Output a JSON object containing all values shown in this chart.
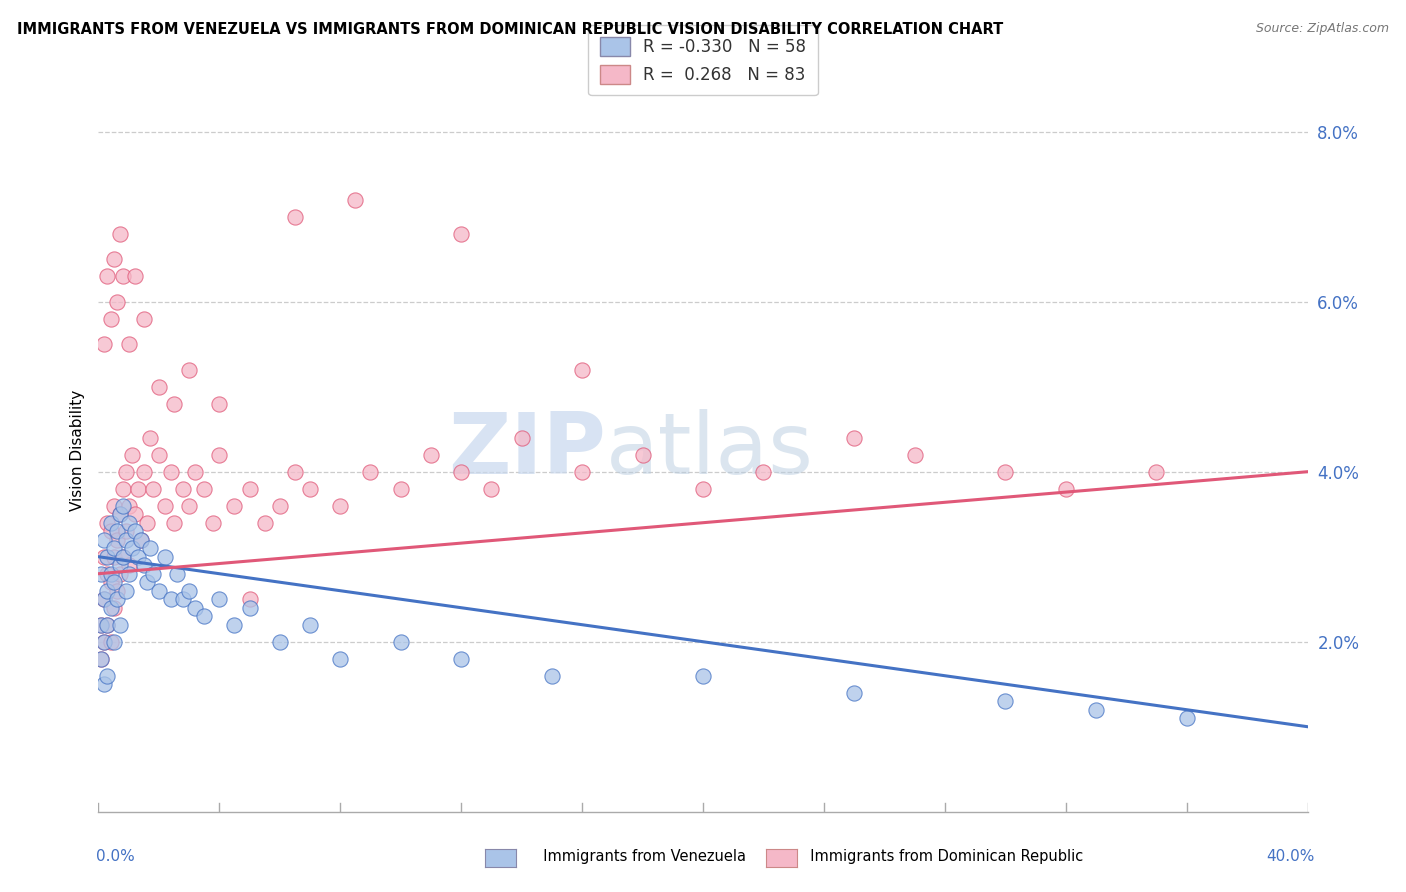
{
  "title": "IMMIGRANTS FROM VENEZUELA VS IMMIGRANTS FROM DOMINICAN REPUBLIC VISION DISABILITY CORRELATION CHART",
  "source": "Source: ZipAtlas.com",
  "ylabel": "Vision Disability",
  "legend_blue_R": "-0.330",
  "legend_blue_N": "58",
  "legend_pink_R": "0.268",
  "legend_pink_N": "83",
  "blue_color": "#aac4e8",
  "pink_color": "#f5b8c8",
  "blue_line_color": "#4472c4",
  "pink_line_color": "#e05878",
  "watermark_zip": "ZIP",
  "watermark_atlas": "atlas",
  "xmin": 0.0,
  "xmax": 0.4,
  "ymin": 0.0,
  "ymax": 0.085,
  "yticks": [
    0.02,
    0.04,
    0.06,
    0.08
  ],
  "ytick_labels": [
    "2.0%",
    "4.0%",
    "6.0%",
    "8.0%"
  ],
  "blue_trend_start": 0.03,
  "blue_trend_end": 0.01,
  "pink_trend_start": 0.028,
  "pink_trend_end": 0.04,
  "blue_scatter_x": [
    0.001,
    0.001,
    0.001,
    0.002,
    0.002,
    0.002,
    0.002,
    0.003,
    0.003,
    0.003,
    0.003,
    0.004,
    0.004,
    0.004,
    0.005,
    0.005,
    0.005,
    0.006,
    0.006,
    0.007,
    0.007,
    0.007,
    0.008,
    0.008,
    0.009,
    0.009,
    0.01,
    0.01,
    0.011,
    0.012,
    0.013,
    0.014,
    0.015,
    0.016,
    0.017,
    0.018,
    0.02,
    0.022,
    0.024,
    0.026,
    0.028,
    0.03,
    0.032,
    0.035,
    0.04,
    0.045,
    0.05,
    0.06,
    0.07,
    0.08,
    0.1,
    0.12,
    0.15,
    0.2,
    0.25,
    0.3,
    0.33,
    0.36
  ],
  "blue_scatter_y": [
    0.028,
    0.022,
    0.018,
    0.032,
    0.025,
    0.02,
    0.015,
    0.03,
    0.026,
    0.022,
    0.016,
    0.034,
    0.028,
    0.024,
    0.031,
    0.027,
    0.02,
    0.033,
    0.025,
    0.035,
    0.029,
    0.022,
    0.036,
    0.03,
    0.032,
    0.026,
    0.034,
    0.028,
    0.031,
    0.033,
    0.03,
    0.032,
    0.029,
    0.027,
    0.031,
    0.028,
    0.026,
    0.03,
    0.025,
    0.028,
    0.025,
    0.026,
    0.024,
    0.023,
    0.025,
    0.022,
    0.024,
    0.02,
    0.022,
    0.018,
    0.02,
    0.018,
    0.016,
    0.016,
    0.014,
    0.013,
    0.012,
    0.011
  ],
  "pink_scatter_x": [
    0.001,
    0.001,
    0.002,
    0.002,
    0.002,
    0.003,
    0.003,
    0.003,
    0.004,
    0.004,
    0.004,
    0.005,
    0.005,
    0.005,
    0.006,
    0.006,
    0.007,
    0.007,
    0.008,
    0.008,
    0.009,
    0.009,
    0.01,
    0.01,
    0.011,
    0.012,
    0.013,
    0.014,
    0.015,
    0.016,
    0.017,
    0.018,
    0.02,
    0.022,
    0.024,
    0.025,
    0.028,
    0.03,
    0.032,
    0.035,
    0.038,
    0.04,
    0.045,
    0.05,
    0.055,
    0.06,
    0.065,
    0.07,
    0.08,
    0.09,
    0.1,
    0.11,
    0.12,
    0.13,
    0.14,
    0.16,
    0.18,
    0.2,
    0.22,
    0.25,
    0.27,
    0.3,
    0.32,
    0.35,
    0.002,
    0.003,
    0.004,
    0.005,
    0.006,
    0.007,
    0.008,
    0.01,
    0.012,
    0.015,
    0.02,
    0.025,
    0.03,
    0.04,
    0.05,
    0.065,
    0.085,
    0.12,
    0.16
  ],
  "pink_scatter_y": [
    0.022,
    0.018,
    0.03,
    0.025,
    0.02,
    0.034,
    0.028,
    0.022,
    0.033,
    0.027,
    0.02,
    0.036,
    0.03,
    0.024,
    0.032,
    0.026,
    0.035,
    0.028,
    0.038,
    0.03,
    0.04,
    0.033,
    0.036,
    0.029,
    0.042,
    0.035,
    0.038,
    0.032,
    0.04,
    0.034,
    0.044,
    0.038,
    0.042,
    0.036,
    0.04,
    0.034,
    0.038,
    0.036,
    0.04,
    0.038,
    0.034,
    0.042,
    0.036,
    0.038,
    0.034,
    0.036,
    0.04,
    0.038,
    0.036,
    0.04,
    0.038,
    0.042,
    0.04,
    0.038,
    0.044,
    0.04,
    0.042,
    0.038,
    0.04,
    0.044,
    0.042,
    0.04,
    0.038,
    0.04,
    0.055,
    0.063,
    0.058,
    0.065,
    0.06,
    0.068,
    0.063,
    0.055,
    0.063,
    0.058,
    0.05,
    0.048,
    0.052,
    0.048,
    0.025,
    0.07,
    0.072,
    0.068,
    0.052
  ]
}
